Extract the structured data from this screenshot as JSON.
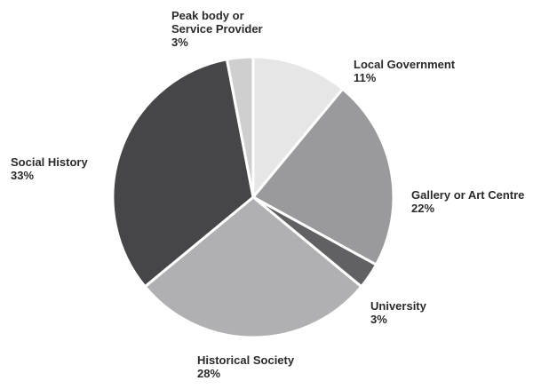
{
  "chart_data": {
    "type": "pie",
    "categories": [
      "Local Government",
      "Gallery or Art Centre",
      "University",
      "Historical Society",
      "Social History",
      "Peak body or Service Provider"
    ],
    "values": [
      11,
      22,
      3,
      28,
      33,
      3
    ],
    "value_labels": [
      "11%",
      "22%",
      "3%",
      "28%",
      "33%",
      "3%"
    ],
    "colors": [
      "#e6e6e6",
      "#9a9a9c",
      "#616163",
      "#b0b0b2",
      "#464648",
      "#cfcfcf"
    ],
    "start_angle": 0,
    "direction": "clockwise"
  }
}
